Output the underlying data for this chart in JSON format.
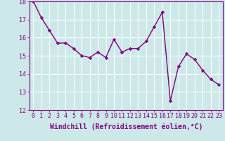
{
  "x": [
    0,
    1,
    2,
    3,
    4,
    5,
    6,
    7,
    8,
    9,
    10,
    11,
    12,
    13,
    14,
    15,
    16,
    17,
    18,
    19,
    20,
    21,
    22,
    23
  ],
  "y": [
    18.0,
    17.1,
    16.4,
    15.7,
    15.7,
    15.4,
    15.0,
    14.9,
    15.2,
    14.9,
    15.9,
    15.2,
    15.4,
    15.4,
    15.8,
    16.6,
    17.4,
    12.5,
    14.4,
    15.1,
    14.8,
    14.2,
    13.7,
    13.4
  ],
  "xlim": [
    -0.5,
    23.5
  ],
  "ylim": [
    12,
    18
  ],
  "yticks": [
    12,
    13,
    14,
    15,
    16,
    17,
    18
  ],
  "xticks": [
    0,
    1,
    2,
    3,
    4,
    5,
    6,
    7,
    8,
    9,
    10,
    11,
    12,
    13,
    14,
    15,
    16,
    17,
    18,
    19,
    20,
    21,
    22,
    23
  ],
  "xlabel": "Windchill (Refroidissement éolien,°C)",
  "line_color": "#800080",
  "marker": "D",
  "marker_size": 2.2,
  "line_width": 1.0,
  "bg_color": "#cce8e8",
  "grid_color": "#b0d0d0",
  "xlabel_fontsize": 7.0,
  "tick_fontsize": 6.0
}
